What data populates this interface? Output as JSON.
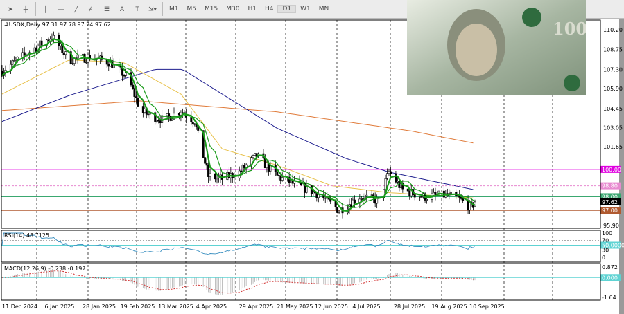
{
  "toolbar": {
    "tools": [
      "cursor-icon",
      "crosshair-icon",
      "vertical-line-icon",
      "horizontal-line-icon",
      "trendline-icon",
      "fibonacci-icon",
      "fibo-channel-icon",
      "text-icon",
      "text-label-icon",
      "shapes-icon"
    ],
    "text_tool": "A",
    "text_label_tool": "T",
    "timeframes": [
      "M1",
      "M5",
      "M15",
      "M30",
      "H1",
      "H4",
      "D1",
      "W1",
      "MN"
    ],
    "active_timeframe": "D1"
  },
  "chart_data": {
    "type": "candlestick",
    "symbol_header": "#USDX,Daily  97.31 97.78 97.24 97.62",
    "last_ohlc": {
      "open": 97.31,
      "high": 97.78,
      "low": 97.24,
      "close": 97.62
    },
    "ylim": [
      95.9,
      110.2
    ],
    "y_ticks": [
      "110.20",
      "108.75",
      "107.30",
      "105.90",
      "104.45",
      "103.05",
      "101.65",
      "95.90"
    ],
    "x_ticks": [
      "11 Dec 2024",
      "6 Jan 2025",
      "28 Jan 2025",
      "19 Feb 2025",
      "13 Mar 2025",
      "4 Apr 2025",
      "29 Apr 2025",
      "21 May 2025",
      "12 Jun 2025",
      "4 Jul 2025",
      "28 Jul 2025",
      "19 Aug 2025",
      "10 Sep 2025"
    ],
    "x_tick_dates": [
      "2024-12-11",
      "2025-01-06",
      "2025-01-28",
      "2025-02-19",
      "2025-03-13",
      "2025-04-04",
      "2025-04-29",
      "2025-05-21",
      "2025-06-12",
      "2025-07-04",
      "2025-07-28",
      "2025-08-19",
      "2025-09-10"
    ],
    "price_path": [
      [
        "2024-12-11",
        107.2
      ],
      [
        "2024-12-26",
        108.5
      ],
      [
        "2025-01-09",
        109.7
      ],
      [
        "2025-01-19",
        108.0
      ],
      [
        "2025-01-31",
        108.2
      ],
      [
        "2025-02-12",
        107.8
      ],
      [
        "2025-02-22",
        106.7
      ],
      [
        "2025-03-02",
        104.2
      ],
      [
        "2025-03-15",
        103.6
      ],
      [
        "2025-03-25",
        104.3
      ],
      [
        "2025-04-02",
        103.5
      ],
      [
        "2025-04-10",
        99.5
      ],
      [
        "2025-04-18",
        99.3
      ],
      [
        "2025-04-28",
        99.8
      ],
      [
        "2025-05-08",
        101.0
      ],
      [
        "2025-05-20",
        99.5
      ],
      [
        "2025-06-01",
        98.8
      ],
      [
        "2025-06-13",
        98.2
      ],
      [
        "2025-06-25",
        97.0
      ],
      [
        "2025-07-07",
        98.0
      ],
      [
        "2025-07-18",
        97.7
      ],
      [
        "2025-07-24",
        99.8
      ],
      [
        "2025-08-01",
        98.5
      ],
      [
        "2025-08-13",
        98.0
      ],
      [
        "2025-08-25",
        98.1
      ],
      [
        "2025-09-02",
        97.9
      ],
      [
        "2025-09-10",
        97.2
      ],
      [
        "2025-09-12",
        97.62
      ]
    ],
    "moving_averages": [
      {
        "color": "#e07b3a",
        "points": [
          [
            "2024-12-11",
            104.3
          ],
          [
            "2025-03-01",
            105.0
          ],
          [
            "2025-05-20",
            104.2
          ],
          [
            "2025-08-06",
            102.8
          ],
          [
            "2025-09-12",
            101.9
          ]
        ]
      },
      {
        "color": "#1f1f8f",
        "points": [
          [
            "2024-12-11",
            103.5
          ],
          [
            "2025-01-19",
            105.4
          ],
          [
            "2025-03-10",
            107.3
          ],
          [
            "2025-03-26",
            107.3
          ],
          [
            "2025-05-20",
            103.0
          ],
          [
            "2025-06-29",
            100.8
          ],
          [
            "2025-07-24",
            99.8
          ],
          [
            "2025-09-12",
            98.5
          ]
        ]
      },
      {
        "color": "#e8c14a",
        "points": [
          [
            "2024-12-11",
            105.5
          ],
          [
            "2025-01-19",
            108.0
          ],
          [
            "2025-02-20",
            107.8
          ],
          [
            "2025-03-25",
            105.5
          ],
          [
            "2025-04-18",
            101.5
          ],
          [
            "2025-05-20",
            100.3
          ],
          [
            "2025-06-21",
            98.8
          ],
          [
            "2025-07-24",
            98.3
          ],
          [
            "2025-09-12",
            97.9
          ]
        ]
      }
    ],
    "fast_ma_color": "#1a9b1a",
    "levels": [
      {
        "value": 100.0,
        "label": "100.00",
        "color": "#e000e0",
        "style": "solid"
      },
      {
        "value": 98.8,
        "label": "98.80",
        "color": "#e88ad0",
        "style": "dashed"
      },
      {
        "value": 98.0,
        "label": "98.00",
        "color": "#3aa870",
        "style": "solid"
      },
      {
        "value": 97.0,
        "label": "97.00",
        "color": "#b05a30",
        "style": "solid"
      }
    ],
    "current_price_label": "97.62",
    "rsi": {
      "header": "RSI(14) 48.7125",
      "ticks": [
        "100",
        "70",
        "50.0000",
        "30",
        "0"
      ],
      "level": 50,
      "color": "#3a8fc0"
    },
    "macd": {
      "header": "MACD(12,26,9) -0.238 -0.197",
      "ticks": [
        "0.872",
        "0.000",
        "-1.64"
      ],
      "ylim": [
        -1.64,
        0.872
      ]
    }
  },
  "colors": {
    "bull": "#000000",
    "bear": "#000000",
    "grid": "#000000",
    "level_line": "#5fd3d3"
  }
}
